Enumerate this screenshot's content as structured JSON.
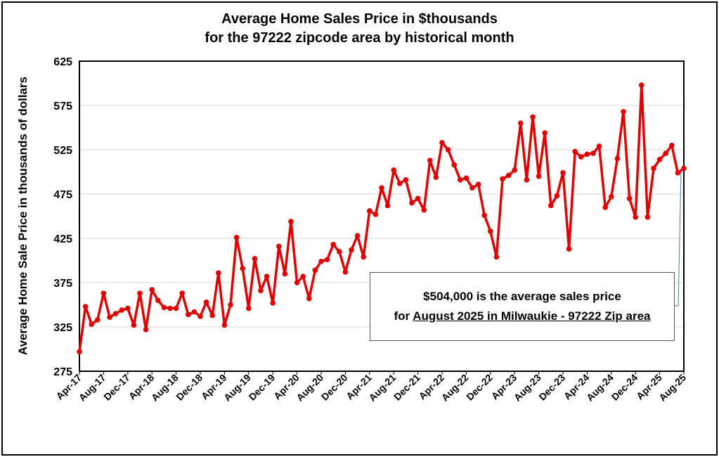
{
  "chart_data": {
    "type": "line",
    "title_line1": "Average Home Sales Price in $thousands",
    "title_line2": "for the 97222 zipcode area by historical month",
    "ylabel": "Average Home Sale Price in thousands of dollars",
    "xlabel": "",
    "ylim": [
      275,
      625
    ],
    "yticks": [
      275,
      325,
      375,
      425,
      475,
      525,
      575,
      625
    ],
    "grid": true,
    "series_color": "#e00000",
    "xtick_labels": [
      "Apr-17",
      "Aug-17",
      "Dec-17",
      "Apr-18",
      "Aug-18",
      "Dec-18",
      "Apr-19",
      "Aug-19",
      "Dec-19",
      "Apr-20",
      "Aug-20",
      "Dec-20",
      "Apr-21",
      "Aug-21",
      "Dec-21",
      "Apr-22",
      "Aug-22",
      "Dec-22",
      "Apr-23",
      "Aug-23",
      "Dec-23",
      "Apr-24",
      "Aug-24",
      "Dec-24",
      "Apr-25",
      "Aug-25"
    ],
    "series": [
      {
        "name": "Average Home Sales Price",
        "start_month": "Apr-17",
        "values": [
          297,
          348,
          328,
          333,
          363,
          336,
          340,
          344,
          346,
          327,
          363,
          322,
          367,
          355,
          347,
          346,
          346,
          363,
          339,
          342,
          337,
          353,
          338,
          386,
          327,
          350,
          426,
          391,
          346,
          402,
          366,
          382,
          352,
          416,
          385,
          444,
          375,
          382,
          357,
          389,
          399,
          401,
          418,
          410,
          387,
          412,
          428,
          404,
          456,
          452,
          482,
          462,
          502,
          487,
          491,
          465,
          470,
          457,
          513,
          494,
          533,
          525,
          508,
          491,
          493,
          482,
          486,
          451,
          433,
          404,
          492,
          496,
          502,
          555,
          491,
          562,
          495,
          544,
          462,
          473,
          499,
          413,
          523,
          517,
          520,
          521,
          529,
          460,
          472,
          515,
          568,
          470,
          449,
          598,
          449,
          504,
          514,
          521,
          530,
          499,
          504
        ]
      }
    ],
    "annotation": {
      "line1": "$504,000 is the average sales price",
      "line2_prefix": "for ",
      "line2_underlined": "August 2025 in Milwaukie - 97222 Zip area"
    }
  }
}
